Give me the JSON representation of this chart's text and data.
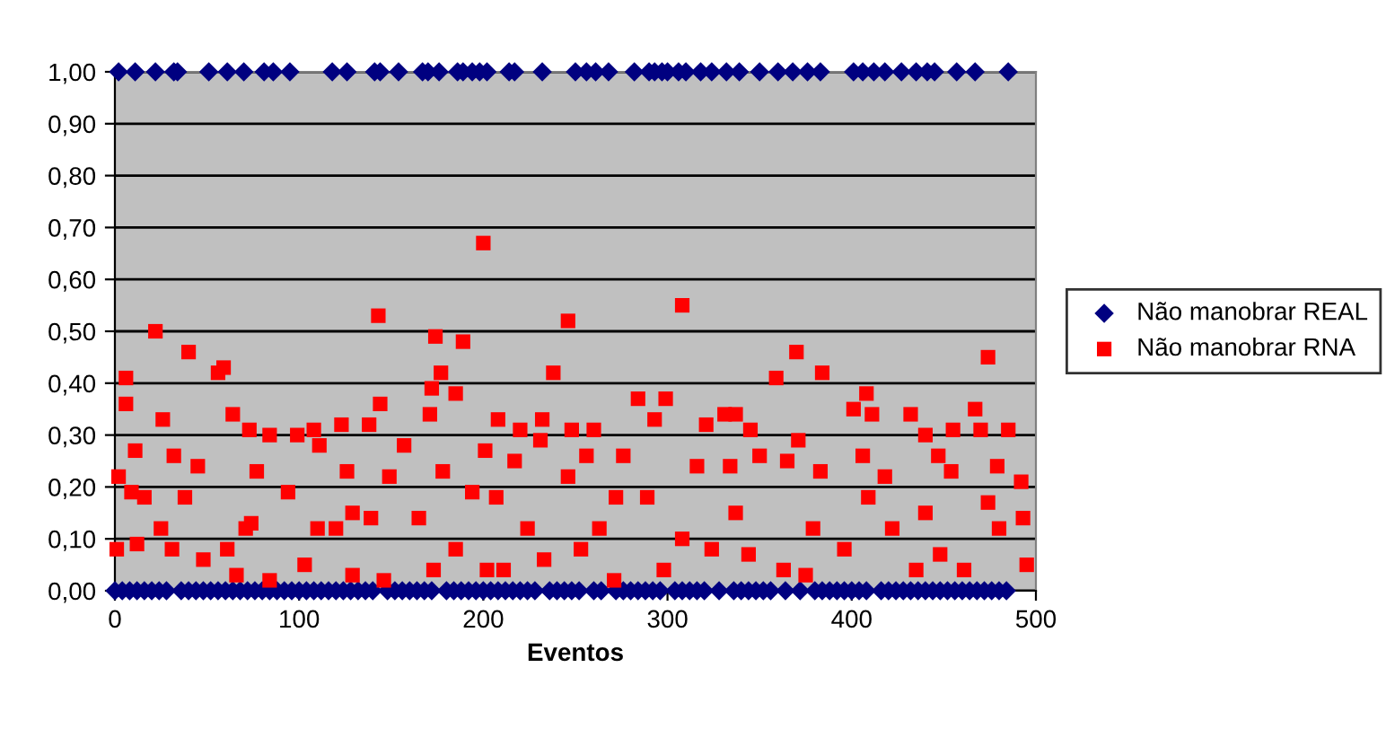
{
  "chart_data": {
    "type": "scatter",
    "xlabel": "Eventos",
    "xlim": [
      0,
      500
    ],
    "xticks": [
      0,
      100,
      200,
      300,
      400,
      500
    ],
    "ylim": [
      0,
      1
    ],
    "yticks": [
      {
        "value": 0,
        "label": "0,00"
      },
      {
        "value": 0.1,
        "label": "0,10"
      },
      {
        "value": 0.2,
        "label": "0,20"
      },
      {
        "value": 0.3,
        "label": "0,30"
      },
      {
        "value": 0.4,
        "label": "0,40"
      },
      {
        "value": 0.5,
        "label": "0,50"
      },
      {
        "value": 0.6,
        "label": "0,60"
      },
      {
        "value": 0.7,
        "label": "0,70"
      },
      {
        "value": 0.8,
        "label": "0,80"
      },
      {
        "value": 0.9,
        "label": "0,90"
      },
      {
        "value": 1,
        "label": "1,00"
      }
    ],
    "grid": "y",
    "legend": "right",
    "series": [
      {
        "name": "Não manobrar REAL",
        "color": "#000080",
        "marker": "diamond",
        "x": [
          0,
          2,
          4,
          8,
          11,
          12,
          16,
          20,
          22,
          24,
          28,
          32,
          34,
          36,
          40,
          44,
          48,
          51,
          52,
          56,
          60,
          61,
          64,
          68,
          70,
          72,
          76,
          80,
          81,
          84,
          86,
          88,
          92,
          95,
          96,
          100,
          104,
          108,
          112,
          116,
          118,
          120,
          124,
          126,
          128,
          132,
          136,
          140,
          141,
          144,
          148,
          152,
          154,
          156,
          160,
          164,
          167,
          168,
          170,
          172,
          176,
          180,
          184,
          186,
          188,
          189,
          192,
          194,
          196,
          198,
          200,
          202,
          204,
          208,
          212,
          214,
          216,
          217,
          220,
          224,
          228,
          232,
          236,
          240,
          244,
          248,
          250,
          252,
          256,
          260,
          261,
          264,
          268,
          272,
          276,
          280,
          282,
          284,
          288,
          290,
          292,
          293,
          296,
          297,
          300,
          304,
          306,
          308,
          310,
          312,
          316,
          318,
          320,
          324,
          328,
          332,
          336,
          339,
          340,
          344,
          348,
          350,
          352,
          356,
          360,
          364,
          368,
          372,
          376,
          380,
          383,
          384,
          388,
          392,
          396,
          400,
          401,
          404,
          406,
          408,
          412,
          416,
          418,
          420,
          424,
          427,
          428,
          432,
          435,
          436,
          440,
          441,
          444,
          445,
          448,
          452,
          456,
          457,
          460,
          464,
          467,
          468,
          472,
          476,
          480,
          484,
          485
        ],
        "values": [
          0,
          1,
          0,
          0,
          1,
          0,
          0,
          0,
          1,
          0,
          0,
          1,
          1,
          0,
          0,
          0,
          0,
          1,
          0,
          0,
          0,
          1,
          0,
          0,
          1,
          0,
          0,
          0,
          1,
          0,
          1,
          0,
          0,
          1,
          0,
          0,
          0,
          0,
          0,
          0,
          1,
          0,
          0,
          1,
          0,
          0,
          0,
          0,
          1,
          1,
          0,
          0,
          1,
          0,
          0,
          0,
          1,
          0,
          1,
          0,
          1,
          0,
          0,
          1,
          0,
          1,
          0,
          1,
          0,
          1,
          0,
          1,
          0,
          0,
          0,
          1,
          0,
          1,
          0,
          0,
          0,
          1,
          0,
          0,
          0,
          0,
          1,
          0,
          1,
          0,
          1,
          0,
          1,
          0,
          0,
          0,
          1,
          0,
          0,
          1,
          0,
          1,
          0,
          1,
          1,
          0,
          1,
          0,
          1,
          0,
          0,
          1,
          0,
          1,
          0,
          1,
          0,
          1,
          0,
          0,
          0,
          1,
          0,
          0,
          1,
          0,
          1,
          0,
          1,
          0,
          1,
          0,
          0,
          0,
          0,
          0,
          1,
          0,
          1,
          0,
          1,
          0,
          1,
          0,
          0,
          1,
          0,
          0,
          1,
          0,
          0,
          1,
          0,
          1,
          0,
          0,
          0,
          1,
          0,
          0,
          1,
          0,
          0,
          0,
          0,
          0,
          1
        ]
      },
      {
        "name": "Não manobrar RNA",
        "color": "#ff0000",
        "marker": "square",
        "x": [
          6,
          6,
          2,
          1,
          11,
          22,
          26,
          16,
          12,
          32,
          40,
          38,
          31,
          56,
          59,
          64,
          48,
          45,
          73,
          66,
          84,
          84,
          77,
          71,
          99,
          108,
          111,
          123,
          103,
          94,
          129,
          138,
          143,
          144,
          146,
          149,
          129,
          157,
          171,
          172,
          174,
          177,
          173,
          185,
          189,
          200,
          194,
          202,
          201,
          208,
          220,
          217,
          231,
          232,
          238,
          246,
          248,
          233,
          211,
          224,
          74,
          110,
          120,
          139,
          165,
          185,
          25,
          9,
          61,
          178,
          207,
          126,
          308,
          284,
          299,
          293,
          260,
          271,
          272,
          256,
          321,
          331,
          337,
          345,
          359,
          370,
          384,
          371,
          365,
          375,
          363,
          401,
          408,
          411,
          406,
          432,
          440,
          447,
          455,
          467,
          474,
          470,
          485,
          479,
          492,
          493,
          495,
          474,
          461,
          448,
          435,
          422,
          409,
          396,
          379,
          383,
          350,
          337,
          324,
          308,
          298,
          289,
          276,
          263,
          246,
          253,
          344,
          418,
          454,
          480,
          440,
          316,
          334
        ],
        "values": [
          0.41,
          0.36,
          0.22,
          0.08,
          0.27,
          0.5,
          0.33,
          0.18,
          0.09,
          0.26,
          0.46,
          0.18,
          0.08,
          0.42,
          0.43,
          0.34,
          0.06,
          0.24,
          0.31,
          0.03,
          0.3,
          0.02,
          0.23,
          0.12,
          0.3,
          0.31,
          0.28,
          0.32,
          0.05,
          0.19,
          0.03,
          0.32,
          0.53,
          0.36,
          0.02,
          0.22,
          0.15,
          0.28,
          0.34,
          0.39,
          0.49,
          0.42,
          0.04,
          0.38,
          0.48,
          0.67,
          0.19,
          0.04,
          0.27,
          0.33,
          0.31,
          0.25,
          0.29,
          0.33,
          0.42,
          0.52,
          0.31,
          0.06,
          0.04,
          0.12,
          0.13,
          0.12,
          0.12,
          0.14,
          0.14,
          0.08,
          0.12,
          0.19,
          0.08,
          0.23,
          0.18,
          0.23,
          0.55,
          0.37,
          0.37,
          0.33,
          0.31,
          0.02,
          0.18,
          0.26,
          0.32,
          0.34,
          0.34,
          0.31,
          0.41,
          0.46,
          0.42,
          0.29,
          0.25,
          0.03,
          0.04,
          0.35,
          0.38,
          0.34,
          0.26,
          0.34,
          0.3,
          0.26,
          0.31,
          0.35,
          0.45,
          0.31,
          0.31,
          0.24,
          0.21,
          0.14,
          0.05,
          0.17,
          0.04,
          0.07,
          0.04,
          0.12,
          0.18,
          0.08,
          0.12,
          0.23,
          0.26,
          0.15,
          0.08,
          0.1,
          0.04,
          0.18,
          0.26,
          0.12,
          0.22,
          0.08,
          0.07,
          0.22,
          0.23,
          0.12,
          0.15,
          0.24,
          0.24
        ]
      }
    ]
  }
}
